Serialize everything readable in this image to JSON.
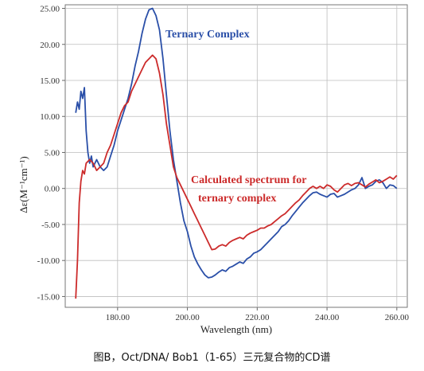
{
  "caption": "图B，Oct/DNA/ Bob1（1-65）三元复合物的CD谱",
  "chart_data": {
    "type": "line",
    "xlabel": "Wavelength (nm)",
    "ylabel": "Δε(M⁻¹cm⁻¹)",
    "xlim": [
      165,
      263
    ],
    "ylim": [
      -16.5,
      25.5
    ],
    "x_ticks": [
      180,
      200,
      220,
      240,
      260
    ],
    "x_tick_labels": [
      "180.00",
      "200.00",
      "220.00",
      "240.00",
      "260.00"
    ],
    "y_ticks": [
      25,
      20,
      15,
      10,
      5,
      0,
      -5,
      -10,
      -15
    ],
    "y_tick_labels": [
      "25.00",
      "20.00",
      "15.00",
      "10.00",
      "5.00",
      "0.00",
      "-5.00",
      "-10.00",
      "-15.00"
    ],
    "grid": true,
    "annotations": [
      {
        "text": "Ternary Complex",
        "color": "#2a4fa8"
      },
      {
        "text": "Calculated spectrum for",
        "color": "#cc2b2b"
      },
      {
        "text": "ternary complex",
        "color": "#cc2b2b"
      }
    ],
    "series": [
      {
        "color": "#2a4fa8",
        "x": [
          168,
          168.5,
          169,
          169.5,
          170,
          170.5,
          171,
          171.5,
          172,
          172.5,
          173,
          174,
          175,
          176,
          177,
          178,
          179,
          180,
          181,
          182,
          183,
          184,
          185,
          186,
          187,
          188,
          189,
          190,
          191,
          192,
          193,
          194,
          195,
          196,
          197,
          198,
          199,
          200,
          201,
          202,
          203,
          204,
          205,
          206,
          207,
          208,
          209,
          210,
          211,
          212,
          213,
          214,
          215,
          216,
          217,
          218,
          219,
          220,
          221,
          222,
          223,
          224,
          225,
          226,
          227,
          228,
          229,
          230,
          231,
          232,
          233,
          234,
          235,
          236,
          237,
          238,
          239,
          240,
          241,
          242,
          243,
          244,
          245,
          246,
          247,
          248,
          249,
          250,
          251,
          252,
          253,
          254,
          255,
          256,
          257,
          258,
          259,
          260
        ],
        "y": [
          10.5,
          12,
          11,
          13.5,
          12.5,
          14,
          8,
          5,
          3.5,
          4.5,
          3,
          4,
          3,
          2.5,
          3,
          4.5,
          6,
          8,
          9.5,
          11,
          12.5,
          14.5,
          17,
          19,
          21.5,
          23.5,
          24.8,
          25,
          24,
          22,
          18,
          13,
          8,
          4,
          1,
          -2,
          -4.5,
          -6,
          -8,
          -9.5,
          -10.5,
          -11.3,
          -12,
          -12.4,
          -12.3,
          -12,
          -11.6,
          -11.3,
          -11.5,
          -11,
          -10.8,
          -10.5,
          -10.2,
          -10.4,
          -9.8,
          -9.5,
          -9,
          -8.8,
          -8.5,
          -8,
          -7.5,
          -7,
          -6.5,
          -6,
          -5.3,
          -5,
          -4.5,
          -3.8,
          -3.2,
          -2.6,
          -2,
          -1.5,
          -1,
          -0.6,
          -0.5,
          -0.8,
          -1,
          -1.2,
          -0.8,
          -0.7,
          -1.2,
          -1,
          -0.8,
          -0.5,
          -0.2,
          0,
          0.5,
          1.5,
          0,
          0.3,
          0.5,
          1,
          1.2,
          0.8,
          0,
          0.5,
          0.4,
          0
        ]
      },
      {
        "color": "#cc2b2b",
        "x": [
          168,
          168.5,
          169,
          169.5,
          170,
          170.5,
          171,
          172,
          173,
          174,
          175,
          176,
          177,
          178,
          179,
          180,
          181,
          182,
          183,
          184,
          185,
          186,
          187,
          188,
          189,
          190,
          191,
          192,
          193,
          194,
          195,
          196,
          197,
          198,
          199,
          200,
          201,
          202,
          203,
          204,
          205,
          206,
          207,
          208,
          209,
          210,
          211,
          212,
          213,
          214,
          215,
          216,
          217,
          218,
          219,
          220,
          221,
          222,
          223,
          224,
          225,
          226,
          227,
          228,
          229,
          230,
          231,
          232,
          233,
          234,
          235,
          236,
          237,
          238,
          239,
          240,
          241,
          242,
          243,
          244,
          245,
          246,
          247,
          248,
          249,
          250,
          251,
          252,
          253,
          254,
          255,
          256,
          257,
          258,
          259,
          260
        ],
        "y": [
          -15.3,
          -10,
          -2,
          1,
          2.5,
          2,
          3.5,
          4,
          3.5,
          2.5,
          3,
          3.5,
          5,
          6,
          7.5,
          9,
          10.5,
          11.5,
          12,
          13.5,
          14.5,
          15.5,
          16.5,
          17.5,
          18,
          18.5,
          18,
          16,
          13,
          9,
          6,
          3,
          1.5,
          0.5,
          -0.5,
          -1.5,
          -2.5,
          -3.5,
          -4.5,
          -5.5,
          -6.5,
          -7.5,
          -8.5,
          -8.4,
          -8,
          -7.8,
          -8,
          -7.5,
          -7.2,
          -7,
          -6.8,
          -7,
          -6.5,
          -6.2,
          -6,
          -5.8,
          -5.5,
          -5.5,
          -5.2,
          -5,
          -4.6,
          -4.2,
          -3.8,
          -3.5,
          -3,
          -2.5,
          -2,
          -1.6,
          -1,
          -0.5,
          0,
          0.3,
          0,
          0.3,
          0,
          0.5,
          0.3,
          -0.2,
          -0.5,
          0,
          0.5,
          0.7,
          0.4,
          0.7,
          0.8,
          0.5,
          0.2,
          0.6,
          0.9,
          1.2,
          0.8,
          1,
          1.3,
          1.6,
          1.3,
          1.8
        ]
      }
    ]
  }
}
